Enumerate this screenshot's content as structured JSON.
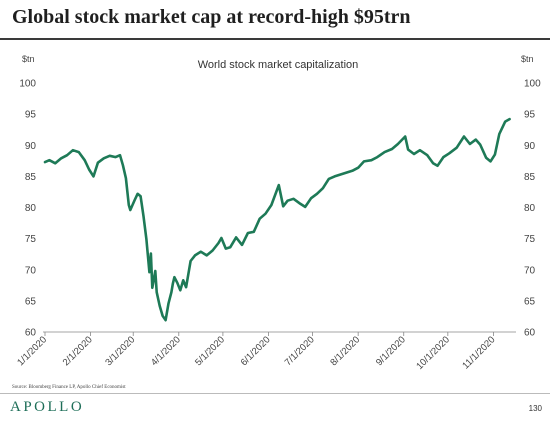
{
  "header": {
    "title": "Global stock market cap at record-high $95trn"
  },
  "chart_data": {
    "type": "line",
    "title": "World stock market capitalization",
    "ylabel_left": "$tn",
    "ylabel_right": "$tn",
    "ylim": [
      60,
      100
    ],
    "yticks": [
      100,
      95,
      90,
      85,
      80,
      75,
      70,
      65,
      60
    ],
    "xlim": [
      "1/1/2020",
      "11/15/2020"
    ],
    "xticks": [
      "1/1/2020",
      "2/1/2020",
      "3/1/2020",
      "4/1/2020",
      "5/1/2020",
      "6/1/2020",
      "7/1/2020",
      "8/1/2020",
      "9/1/2020",
      "10/1/2020",
      "11/1/2020"
    ],
    "grid": false,
    "line_color": "#1e7a57",
    "series": [
      {
        "name": "",
        "points": [
          [
            "1/1/2020",
            87.3
          ],
          [
            "1/4/2020",
            87.6
          ],
          [
            "1/8/2020",
            87.1
          ],
          [
            "1/12/2020",
            87.9
          ],
          [
            "1/16/2020",
            88.4
          ],
          [
            "1/20/2020",
            89.2
          ],
          [
            "1/24/2020",
            88.9
          ],
          [
            "1/28/2020",
            87.6
          ],
          [
            "1/31/2020",
            86.1
          ],
          [
            "2/3/2020",
            85.0
          ],
          [
            "2/6/2020",
            87.2
          ],
          [
            "2/10/2020",
            87.9
          ],
          [
            "2/14/2020",
            88.3
          ],
          [
            "2/18/2020",
            88.1
          ],
          [
            "2/21/2020",
            88.4
          ],
          [
            "2/23/2020",
            86.8
          ],
          [
            "2/25/2020",
            84.7
          ],
          [
            "2/27/2020",
            80.4
          ],
          [
            "2/28/2020",
            79.6
          ],
          [
            "3/2/2020",
            81.2
          ],
          [
            "3/4/2020",
            82.2
          ],
          [
            "3/6/2020",
            81.8
          ],
          [
            "3/8/2020",
            78.6
          ],
          [
            "3/10/2020",
            74.9
          ],
          [
            "3/12/2020",
            69.6
          ],
          [
            "3/13/2020",
            72.6
          ],
          [
            "3/14/2020",
            67.1
          ],
          [
            "3/16/2020",
            69.8
          ],
          [
            "3/17/2020",
            66.4
          ],
          [
            "3/19/2020",
            64.2
          ],
          [
            "3/21/2020",
            62.6
          ],
          [
            "3/23/2020",
            61.9
          ],
          [
            "3/25/2020",
            64.6
          ],
          [
            "3/27/2020",
            66.4
          ],
          [
            "3/28/2020",
            67.8
          ],
          [
            "3/29/2020",
            68.8
          ],
          [
            "3/31/2020",
            67.9
          ],
          [
            "4/2/2020",
            66.7
          ],
          [
            "4/4/2020",
            68.3
          ],
          [
            "4/6/2020",
            67.2
          ],
          [
            "4/9/2020",
            71.4
          ],
          [
            "4/12/2020",
            72.3
          ],
          [
            "4/16/2020",
            72.9
          ],
          [
            "4/20/2020",
            72.3
          ],
          [
            "4/24/2020",
            73.1
          ],
          [
            "4/28/2020",
            74.3
          ],
          [
            "4/30/2020",
            75.1
          ],
          [
            "5/3/2020",
            73.4
          ],
          [
            "5/6/2020",
            73.6
          ],
          [
            "5/10/2020",
            75.2
          ],
          [
            "5/14/2020",
            74.0
          ],
          [
            "5/18/2020",
            75.9
          ],
          [
            "5/22/2020",
            76.1
          ],
          [
            "5/26/2020",
            78.2
          ],
          [
            "5/30/2020",
            79.0
          ],
          [
            "6/3/2020",
            80.4
          ],
          [
            "6/8/2020",
            83.6
          ],
          [
            "6/11/2020",
            80.2
          ],
          [
            "6/14/2020",
            81.1
          ],
          [
            "6/18/2020",
            81.4
          ],
          [
            "6/22/2020",
            80.7
          ],
          [
            "6/26/2020",
            80.1
          ],
          [
            "6/30/2020",
            81.5
          ],
          [
            "7/4/2020",
            82.2
          ],
          [
            "7/8/2020",
            83.1
          ],
          [
            "7/12/2020",
            84.6
          ],
          [
            "7/16/2020",
            85.0
          ],
          [
            "7/20/2020",
            85.3
          ],
          [
            "7/24/2020",
            85.6
          ],
          [
            "7/28/2020",
            85.9
          ],
          [
            "8/1/2020",
            86.4
          ],
          [
            "8/5/2020",
            87.4
          ],
          [
            "8/10/2020",
            87.6
          ],
          [
            "8/14/2020",
            88.1
          ],
          [
            "8/19/2020",
            88.9
          ],
          [
            "8/24/2020",
            89.4
          ],
          [
            "8/28/2020",
            90.2
          ],
          [
            "9/2/2020",
            91.4
          ],
          [
            "9/4/2020",
            89.3
          ],
          [
            "9/8/2020",
            88.6
          ],
          [
            "9/12/2020",
            89.2
          ],
          [
            "9/17/2020",
            88.4
          ],
          [
            "9/21/2020",
            87.1
          ],
          [
            "9/24/2020",
            86.7
          ],
          [
            "9/28/2020",
            88.1
          ],
          [
            "10/2/2020",
            88.7
          ],
          [
            "10/7/2020",
            89.6
          ],
          [
            "10/12/2020",
            91.4
          ],
          [
            "10/16/2020",
            90.2
          ],
          [
            "10/20/2020",
            90.9
          ],
          [
            "10/23/2020",
            90.1
          ],
          [
            "10/27/2020",
            88.0
          ],
          [
            "10/30/2020",
            87.4
          ],
          [
            "11/2/2020",
            88.5
          ],
          [
            "11/5/2020",
            91.8
          ],
          [
            "11/9/2020",
            93.8
          ],
          [
            "11/12/2020",
            94.2
          ]
        ]
      }
    ]
  },
  "footer": {
    "source": "Source: Bloomberg Finance LP, Apollo Chief Economist",
    "logo": "APOLLO",
    "page_number": "130"
  }
}
